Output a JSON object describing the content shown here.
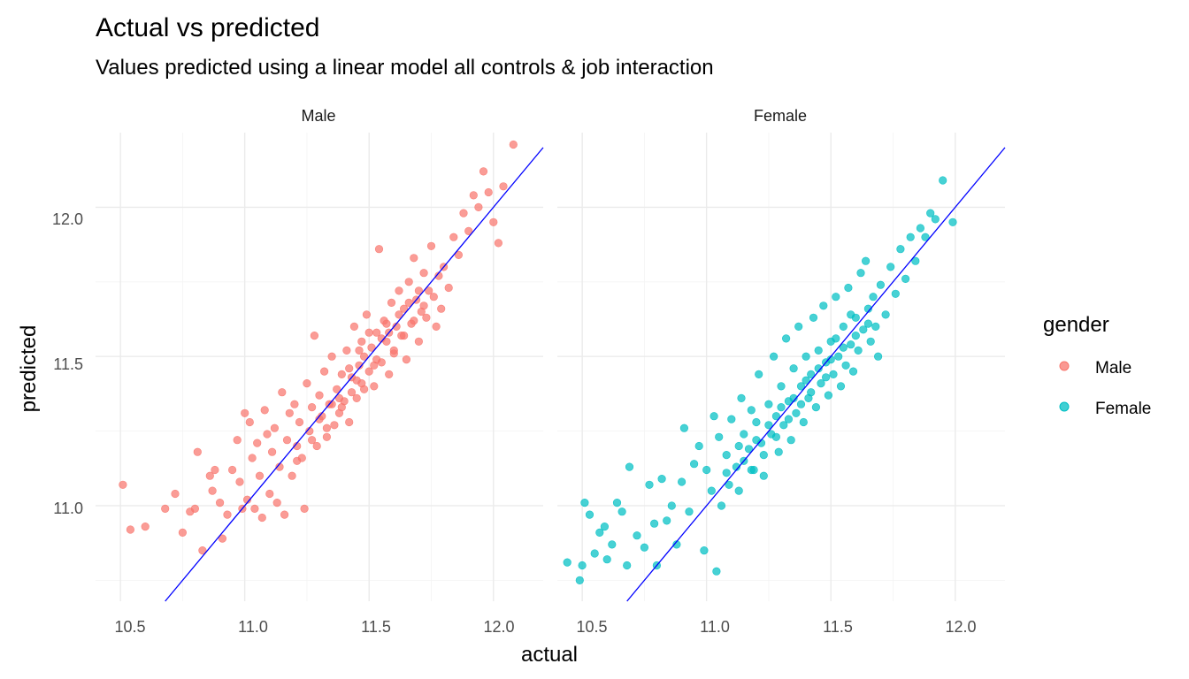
{
  "chart_data": {
    "type": "scatter",
    "title": "Actual vs predicted",
    "subtitle": "Values predicted using a linear model all controls & job interaction",
    "xlabel": "actual",
    "ylabel": "predicted",
    "xlim": [
      10.4,
      12.2
    ],
    "ylim": [
      10.68,
      12.25
    ],
    "x_ticks": [
      "10.5",
      "11.0",
      "11.5",
      "12.0"
    ],
    "y_ticks": [
      "11.0",
      "11.5",
      "12.0"
    ],
    "grid": true,
    "reference_line": {
      "slope": 1,
      "intercept": 0,
      "color": "#0000ff"
    },
    "facets": [
      "Male",
      "Female"
    ],
    "legend": {
      "title": "gender",
      "placement": "right",
      "entries": [
        {
          "label": "Male",
          "color": "#f8766d"
        },
        {
          "label": "Female",
          "color": "#00bfc4"
        }
      ]
    },
    "series": [
      {
        "name": "Male",
        "facet": "Male",
        "color": "#f8766d",
        "points": [
          [
            10.51,
            11.07
          ],
          [
            10.54,
            10.92
          ],
          [
            10.6,
            10.93
          ],
          [
            10.68,
            10.99
          ],
          [
            10.72,
            11.04
          ],
          [
            10.75,
            10.91
          ],
          [
            10.78,
            10.98
          ],
          [
            10.8,
            10.99
          ],
          [
            10.81,
            11.18
          ],
          [
            10.83,
            10.85
          ],
          [
            10.86,
            11.1
          ],
          [
            10.87,
            11.05
          ],
          [
            10.88,
            11.12
          ],
          [
            10.9,
            11.01
          ],
          [
            10.91,
            10.89
          ],
          [
            10.93,
            10.97
          ],
          [
            10.95,
            11.12
          ],
          [
            10.97,
            11.22
          ],
          [
            10.98,
            11.08
          ],
          [
            10.99,
            10.99
          ],
          [
            11.0,
            11.31
          ],
          [
            11.01,
            11.02
          ],
          [
            11.02,
            11.28
          ],
          [
            11.03,
            11.16
          ],
          [
            11.04,
            10.99
          ],
          [
            11.05,
            11.21
          ],
          [
            11.06,
            11.1
          ],
          [
            11.07,
            10.96
          ],
          [
            11.08,
            11.32
          ],
          [
            11.09,
            11.24
          ],
          [
            11.1,
            11.04
          ],
          [
            11.11,
            11.18
          ],
          [
            11.12,
            11.26
          ],
          [
            11.13,
            11.01
          ],
          [
            11.14,
            11.13
          ],
          [
            11.15,
            11.38
          ],
          [
            11.16,
            10.97
          ],
          [
            11.17,
            11.22
          ],
          [
            11.18,
            11.31
          ],
          [
            11.19,
            11.1
          ],
          [
            11.2,
            11.34
          ],
          [
            11.21,
            11.2
          ],
          [
            11.22,
            11.28
          ],
          [
            11.23,
            11.16
          ],
          [
            11.24,
            10.99
          ],
          [
            11.25,
            11.41
          ],
          [
            11.26,
            11.25
          ],
          [
            11.27,
            11.33
          ],
          [
            11.28,
            11.57
          ],
          [
            11.29,
            11.2
          ],
          [
            11.3,
            11.37
          ],
          [
            11.31,
            11.3
          ],
          [
            11.32,
            11.45
          ],
          [
            11.33,
            11.23
          ],
          [
            11.34,
            11.34
          ],
          [
            11.35,
            11.5
          ],
          [
            11.36,
            11.27
          ],
          [
            11.37,
            11.39
          ],
          [
            11.38,
            11.31
          ],
          [
            11.39,
            11.44
          ],
          [
            11.4,
            11.35
          ],
          [
            11.41,
            11.52
          ],
          [
            11.42,
            11.28
          ],
          [
            11.43,
            11.43
          ],
          [
            11.44,
            11.6
          ],
          [
            11.45,
            11.36
          ],
          [
            11.46,
            11.47
          ],
          [
            11.47,
            11.55
          ],
          [
            11.48,
            11.39
          ],
          [
            11.49,
            11.64
          ],
          [
            11.5,
            11.45
          ],
          [
            11.51,
            11.53
          ],
          [
            11.52,
            11.4
          ],
          [
            11.53,
            11.58
          ],
          [
            11.54,
            11.86
          ],
          [
            11.55,
            11.48
          ],
          [
            11.56,
            11.62
          ],
          [
            11.57,
            11.55
          ],
          [
            11.58,
            11.44
          ],
          [
            11.59,
            11.68
          ],
          [
            11.6,
            11.51
          ],
          [
            11.61,
            11.6
          ],
          [
            11.62,
            11.72
          ],
          [
            11.63,
            11.57
          ],
          [
            11.64,
            11.66
          ],
          [
            11.65,
            11.49
          ],
          [
            11.66,
            11.75
          ],
          [
            11.67,
            11.61
          ],
          [
            11.68,
            11.83
          ],
          [
            11.69,
            11.69
          ],
          [
            11.7,
            11.55
          ],
          [
            11.71,
            11.65
          ],
          [
            11.72,
            11.78
          ],
          [
            11.73,
            11.63
          ],
          [
            11.74,
            11.72
          ],
          [
            11.75,
            11.87
          ],
          [
            11.76,
            11.7
          ],
          [
            11.77,
            11.6
          ],
          [
            11.78,
            11.77
          ],
          [
            11.79,
            11.66
          ],
          [
            11.8,
            11.8
          ],
          [
            11.82,
            11.73
          ],
          [
            11.84,
            11.9
          ],
          [
            11.86,
            11.84
          ],
          [
            11.88,
            11.98
          ],
          [
            11.9,
            11.92
          ],
          [
            11.92,
            12.04
          ],
          [
            11.94,
            12.0
          ],
          [
            11.96,
            12.12
          ],
          [
            11.98,
            12.05
          ],
          [
            12.0,
            11.95
          ],
          [
            12.02,
            11.88
          ],
          [
            12.04,
            12.07
          ],
          [
            12.08,
            12.21
          ],
          [
            11.58,
            11.58
          ],
          [
            11.62,
            11.64
          ],
          [
            11.48,
            11.5
          ],
          [
            11.52,
            11.47
          ],
          [
            11.55,
            11.56
          ],
          [
            11.45,
            11.42
          ],
          [
            11.42,
            11.46
          ],
          [
            11.38,
            11.36
          ],
          [
            11.35,
            11.34
          ],
          [
            11.3,
            11.29
          ],
          [
            11.6,
            11.52
          ],
          [
            11.66,
            11.68
          ],
          [
            11.7,
            11.72
          ],
          [
            11.57,
            11.61
          ],
          [
            11.53,
            11.49
          ],
          [
            11.47,
            11.41
          ],
          [
            11.43,
            11.38
          ],
          [
            11.39,
            11.33
          ],
          [
            11.33,
            11.26
          ],
          [
            11.27,
            11.22
          ],
          [
            11.21,
            11.15
          ],
          [
            11.64,
            11.57
          ],
          [
            11.68,
            11.62
          ],
          [
            11.72,
            11.67
          ],
          [
            11.5,
            11.58
          ],
          [
            11.46,
            11.52
          ]
        ]
      },
      {
        "name": "Female",
        "facet": "Female",
        "color": "#00bfc4",
        "points": [
          [
            10.44,
            10.81
          ],
          [
            10.49,
            10.75
          ],
          [
            10.5,
            10.8
          ],
          [
            10.51,
            11.01
          ],
          [
            10.53,
            10.97
          ],
          [
            10.55,
            10.84
          ],
          [
            10.57,
            10.91
          ],
          [
            10.59,
            10.93
          ],
          [
            10.6,
            10.82
          ],
          [
            10.62,
            10.87
          ],
          [
            10.64,
            11.01
          ],
          [
            10.66,
            10.98
          ],
          [
            10.68,
            10.8
          ],
          [
            10.69,
            11.13
          ],
          [
            10.72,
            10.9
          ],
          [
            10.75,
            10.86
          ],
          [
            10.77,
            11.07
          ],
          [
            10.79,
            10.94
          ],
          [
            10.8,
            10.8
          ],
          [
            10.82,
            11.09
          ],
          [
            10.84,
            10.95
          ],
          [
            10.86,
            11.0
          ],
          [
            10.88,
            10.87
          ],
          [
            10.9,
            11.08
          ],
          [
            10.91,
            11.26
          ],
          [
            10.93,
            10.98
          ],
          [
            10.95,
            11.14
          ],
          [
            10.97,
            11.2
          ],
          [
            10.99,
            10.85
          ],
          [
            11.0,
            11.12
          ],
          [
            11.02,
            11.05
          ],
          [
            11.03,
            11.3
          ],
          [
            11.04,
            10.78
          ],
          [
            11.05,
            11.23
          ],
          [
            11.06,
            11.0
          ],
          [
            11.08,
            11.17
          ],
          [
            11.09,
            11.07
          ],
          [
            11.1,
            11.29
          ],
          [
            11.12,
            11.13
          ],
          [
            11.13,
            11.05
          ],
          [
            11.14,
            11.36
          ],
          [
            11.15,
            11.24
          ],
          [
            11.17,
            11.19
          ],
          [
            11.18,
            11.32
          ],
          [
            11.19,
            11.12
          ],
          [
            11.2,
            11.28
          ],
          [
            11.21,
            11.44
          ],
          [
            11.22,
            11.21
          ],
          [
            11.23,
            11.1
          ],
          [
            11.25,
            11.34
          ],
          [
            11.26,
            11.24
          ],
          [
            11.27,
            11.5
          ],
          [
            11.28,
            11.3
          ],
          [
            11.29,
            11.18
          ],
          [
            11.3,
            11.4
          ],
          [
            11.31,
            11.27
          ],
          [
            11.32,
            11.56
          ],
          [
            11.33,
            11.35
          ],
          [
            11.34,
            11.22
          ],
          [
            11.35,
            11.46
          ],
          [
            11.36,
            11.31
          ],
          [
            11.37,
            11.6
          ],
          [
            11.38,
            11.4
          ],
          [
            11.39,
            11.28
          ],
          [
            11.4,
            11.5
          ],
          [
            11.41,
            11.36
          ],
          [
            11.42,
            11.44
          ],
          [
            11.43,
            11.63
          ],
          [
            11.44,
            11.33
          ],
          [
            11.45,
            11.52
          ],
          [
            11.46,
            11.41
          ],
          [
            11.47,
            11.67
          ],
          [
            11.48,
            11.48
          ],
          [
            11.49,
            11.37
          ],
          [
            11.5,
            11.55
          ],
          [
            11.51,
            11.44
          ],
          [
            11.52,
            11.7
          ],
          [
            11.53,
            11.5
          ],
          [
            11.54,
            11.4
          ],
          [
            11.55,
            11.6
          ],
          [
            11.56,
            11.47
          ],
          [
            11.57,
            11.73
          ],
          [
            11.58,
            11.54
          ],
          [
            11.59,
            11.45
          ],
          [
            11.6,
            11.63
          ],
          [
            11.61,
            11.52
          ],
          [
            11.62,
            11.78
          ],
          [
            11.63,
            11.59
          ],
          [
            11.64,
            11.82
          ],
          [
            11.65,
            11.66
          ],
          [
            11.66,
            11.55
          ],
          [
            11.67,
            11.7
          ],
          [
            11.68,
            11.6
          ],
          [
            11.69,
            11.5
          ],
          [
            11.7,
            11.74
          ],
          [
            11.72,
            11.64
          ],
          [
            11.74,
            11.8
          ],
          [
            11.76,
            11.71
          ],
          [
            11.78,
            11.86
          ],
          [
            11.8,
            11.76
          ],
          [
            11.82,
            11.9
          ],
          [
            11.84,
            11.82
          ],
          [
            11.86,
            11.93
          ],
          [
            11.88,
            11.9
          ],
          [
            11.9,
            11.98
          ],
          [
            11.92,
            11.96
          ],
          [
            11.95,
            12.09
          ],
          [
            11.99,
            11.95
          ],
          [
            11.45,
            11.46
          ],
          [
            11.5,
            11.49
          ],
          [
            11.55,
            11.53
          ],
          [
            11.4,
            11.42
          ],
          [
            11.35,
            11.36
          ],
          [
            11.3,
            11.33
          ],
          [
            11.25,
            11.27
          ],
          [
            11.2,
            11.22
          ],
          [
            11.15,
            11.15
          ],
          [
            11.6,
            11.57
          ],
          [
            11.65,
            11.61
          ],
          [
            11.58,
            11.64
          ],
          [
            11.52,
            11.56
          ],
          [
            11.48,
            11.43
          ],
          [
            11.42,
            11.38
          ],
          [
            11.38,
            11.34
          ],
          [
            11.33,
            11.29
          ],
          [
            11.28,
            11.23
          ],
          [
            11.23,
            11.17
          ],
          [
            11.18,
            11.12
          ],
          [
            11.13,
            11.2
          ],
          [
            11.08,
            11.11
          ]
        ]
      }
    ]
  }
}
